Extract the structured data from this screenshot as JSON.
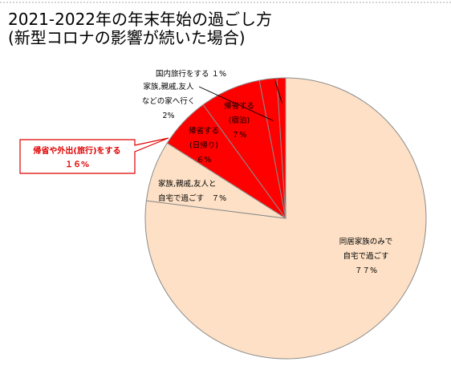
{
  "title": {
    "line1": "2021-2022年の年末年始の過ごし方",
    "line2": "(新型コロナの影響が続いた場合)"
  },
  "colors": {
    "slice_main": "#fde0c5",
    "slice_travel": "#ff0000",
    "slice_stroke": "#8c8c8c",
    "callout": "#e00000"
  },
  "chart_data": {
    "type": "pie",
    "title": "2021-2022年の年末年始の過ごし方 (新型コロナの影響が続いた場合)",
    "start_angle": "12 o'clock",
    "direction": "clockwise",
    "slices": [
      {
        "label_lines": [
          "同居家族のみで",
          "自宅で過ごす",
          "７７%"
        ],
        "value": 77,
        "color": "#fde0c5"
      },
      {
        "label_lines": [
          "家族,親戚,友人と",
          "自宅で過ごす　７%"
        ],
        "value": 7,
        "color": "#fde0c5"
      },
      {
        "label_lines": [
          "帰省する",
          "(日帰り)",
          "６%"
        ],
        "value": 6,
        "color": "#ff0000"
      },
      {
        "label_lines": [
          "帰省する",
          "(宿泊)",
          "７%"
        ],
        "value": 7,
        "color": "#ff0000"
      },
      {
        "label_lines": [
          "家族,親戚,友人",
          "などの家へ行く",
          "2%"
        ],
        "value": 2,
        "color": "#ff0000"
      },
      {
        "label_lines": [
          "国内旅行をする １%"
        ],
        "value": 1,
        "color": "#ff0000"
      }
    ],
    "group_annotation": {
      "label_lines": [
        "帰省や外出(旅行)をする",
        "１６%"
      ],
      "value": 16,
      "members": [
        "帰省する (日帰り)",
        "帰省する (宿泊)",
        "家族,親戚,友人などの家へ行く",
        "国内旅行をする"
      ]
    }
  }
}
